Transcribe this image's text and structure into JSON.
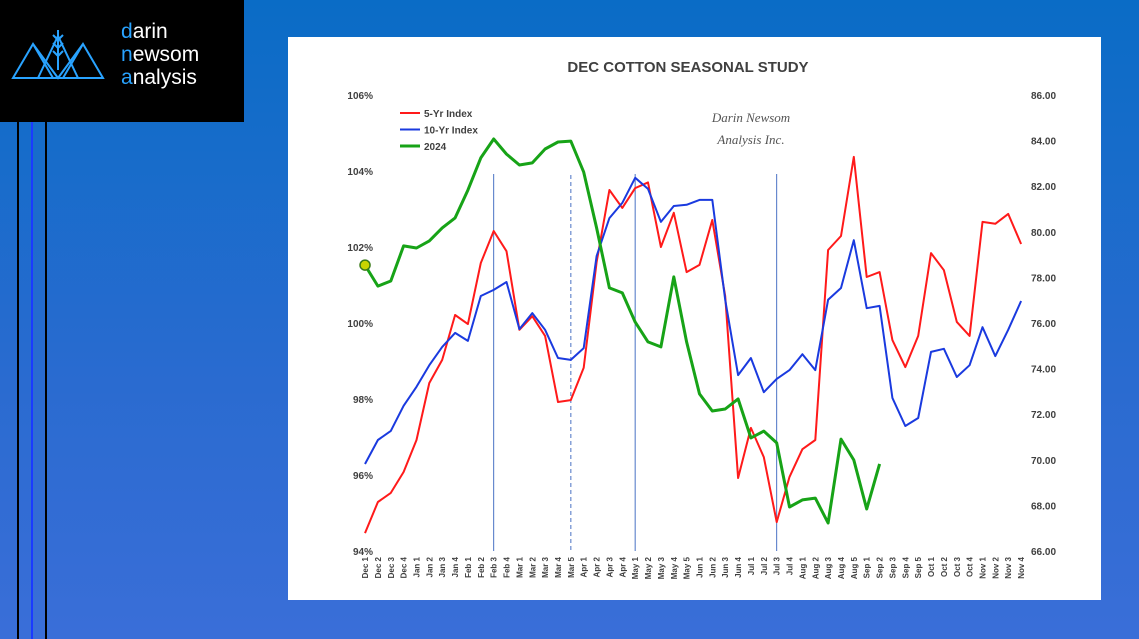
{
  "logo": {
    "lines": [
      "darin",
      "newsom",
      "analysis"
    ]
  },
  "chart_data": {
    "type": "line",
    "title": "DEC COTTON SEASONAL STUDY",
    "annotations": [
      "Darin Newsom",
      "Analysis Inc."
    ],
    "categories": [
      "Dec 1",
      "Dec 2",
      "Dec 3",
      "Dec 4",
      "Jan 1",
      "Jan 2",
      "Jan 3",
      "Jan 4",
      "Feb 1",
      "Feb 2",
      "Feb 3",
      "Feb 4",
      "Mar 1",
      "Mar 2",
      "Mar 3",
      "Mar 4",
      "Mar 5",
      "Apr 1",
      "Apr 2",
      "Apr 3",
      "Apr 4",
      "May 1",
      "May 2",
      "May 3",
      "May 4",
      "May 5",
      "Jun 1",
      "Jun 2",
      "Jun 3",
      "Jun 4",
      "Jul 1",
      "Jul 2",
      "Jul 3",
      "Jul 4",
      "Aug 1",
      "Aug 2",
      "Aug 3",
      "Aug 4",
      "Aug 5",
      "Sep 1",
      "Sep 2",
      "Sep 3",
      "Sep 4",
      "Sep 5",
      "Oct 1",
      "Oct 2",
      "Oct 3",
      "Oct 4",
      "Nov 1",
      "Nov 2",
      "Nov 3",
      "Nov 4"
    ],
    "series": [
      {
        "name": "5-Yr Index",
        "color": "#ff1a1a",
        "values": [
          94.47,
          95.29,
          95.53,
          96.08,
          96.92,
          98.42,
          99.03,
          100.21,
          99.97,
          101.58,
          102.42,
          101.89,
          99.82,
          100.18,
          99.66,
          97.92,
          97.97,
          98.82,
          101.6,
          103.5,
          103.03,
          103.55,
          103.7,
          102.0,
          102.9,
          101.34,
          101.53,
          102.71,
          100.71,
          95.92,
          97.24,
          96.47,
          94.76,
          95.95,
          96.68,
          96.92,
          101.92,
          102.29,
          104.37,
          101.21,
          101.34,
          99.55,
          98.84,
          99.66,
          101.84,
          101.39,
          100.03,
          99.66,
          102.66,
          102.61,
          102.87,
          102.08
        ]
      },
      {
        "name": "10-Yr Index",
        "color": "#1a3adf",
        "values": [
          96.29,
          96.92,
          97.16,
          97.82,
          98.32,
          98.89,
          99.37,
          99.74,
          99.53,
          100.71,
          100.87,
          101.08,
          99.84,
          100.26,
          99.82,
          99.08,
          99.03,
          99.34,
          101.76,
          102.76,
          103.16,
          103.82,
          103.53,
          102.66,
          103.08,
          103.11,
          103.24,
          103.24,
          100.61,
          98.63,
          99.08,
          98.18,
          98.53,
          98.76,
          99.18,
          98.76,
          100.61,
          100.92,
          102.18,
          100.39,
          100.45,
          98.03,
          97.29,
          97.5,
          99.24,
          99.32,
          98.58,
          98.89,
          99.89,
          99.13,
          99.82,
          100.58
        ]
      },
      {
        "name": "2024",
        "color": "#17a317",
        "axis": "y2",
        "values": [
          78.54,
          77.62,
          77.84,
          79.38,
          79.29,
          79.6,
          80.17,
          80.61,
          81.83,
          83.24,
          84.07,
          83.41,
          82.93,
          83.02,
          83.63,
          83.94,
          83.98,
          82.62,
          80.17,
          77.54,
          77.32,
          76.04,
          75.17,
          74.95,
          78.02,
          75.17,
          72.89,
          72.14,
          72.23,
          72.67,
          70.96,
          71.26,
          70.74,
          67.93,
          68.24,
          68.32,
          67.23,
          70.91,
          69.99,
          67.84,
          69.82,
          null,
          null,
          null,
          null,
          null,
          null,
          null,
          null,
          null,
          null,
          null
        ]
      }
    ],
    "ylim": [
      94,
      106
    ],
    "yticks": [
      {
        "value": 94,
        "label": "94%"
      },
      {
        "value": 96,
        "label": "96%"
      },
      {
        "value": 98,
        "label": "98%"
      },
      {
        "value": 100,
        "label": "100%"
      },
      {
        "value": 102,
        "label": "102%"
      },
      {
        "value": 104,
        "label": "104%"
      },
      {
        "value": 106,
        "label": "106%"
      }
    ],
    "y2lim": [
      66,
      86
    ],
    "y2ticks": [
      {
        "value": 66,
        "label": "66.00"
      },
      {
        "value": 68,
        "label": "68.00"
      },
      {
        "value": 70,
        "label": "70.00"
      },
      {
        "value": 72,
        "label": "72.00"
      },
      {
        "value": 74,
        "label": "74.00"
      },
      {
        "value": 76,
        "label": "76.00"
      },
      {
        "value": 78,
        "label": "78.00"
      },
      {
        "value": 80,
        "label": "80.00"
      },
      {
        "value": 82,
        "label": "82.00"
      },
      {
        "value": 84,
        "label": "84.00"
      },
      {
        "value": 86,
        "label": "86.00"
      }
    ],
    "legend": "top-left",
    "grid": false
  }
}
